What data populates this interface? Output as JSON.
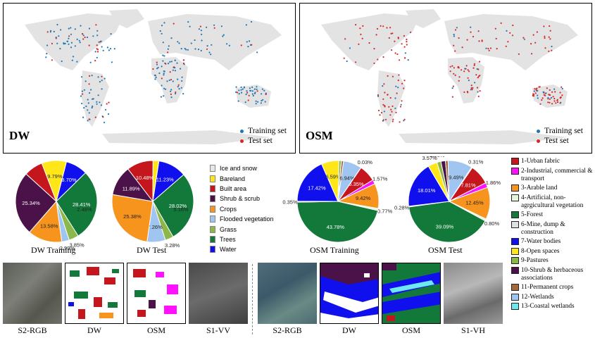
{
  "maps": [
    {
      "name": "DW",
      "legend": [
        {
          "label": "Training set",
          "color": "#1f77b4"
        },
        {
          "label": "Test set",
          "color": "#d62728"
        }
      ]
    },
    {
      "name": "OSM",
      "legend": [
        {
          "label": "Training set",
          "color": "#1f77b4"
        },
        {
          "label": "Test set",
          "color": "#d62728"
        }
      ]
    }
  ],
  "chart_data": [
    {
      "type": "pie",
      "title": "DW Training",
      "labels": [
        "Ice and snow",
        "Water",
        "Trees",
        "Grass",
        "Flooded vegetation",
        "Crops",
        "Shrub & scrub",
        "Built area",
        "Bareland"
      ],
      "values": [
        0,
        8.7,
        28.41,
        3.85,
        2.99,
        13.58,
        25.34,
        7.49,
        9.79
      ],
      "value_labels": [
        "",
        "8.70%",
        "28.41%",
        "3.85%",
        "2.99%",
        "13.58%",
        "25.34%",
        "",
        "9.79%"
      ],
      "extra_labels": [
        "2.48%"
      ]
    },
    {
      "type": "pie",
      "title": "DW Test",
      "labels": [
        "Ice and snow",
        "Water",
        "Trees",
        "Grass",
        "Flooded vegetation",
        "Crops",
        "Shrub & scrub",
        "Built area",
        "Bareland"
      ],
      "values": [
        0,
        11.23,
        28.02,
        3.28,
        7.26,
        25.38,
        11.89,
        10.48,
        2.29
      ],
      "value_labels": [
        "",
        "11.23%",
        "28.02%",
        "3.28%",
        "7.26%",
        "25.38%",
        "11.89%",
        "10.48%",
        "2.29%"
      ],
      "extra_labels": [
        "5.16%"
      ]
    },
    {
      "type": "pie",
      "title": "OSM Training",
      "labels": [
        "Urban fabric",
        "Industrial",
        "Arable land",
        "Artificial",
        "Forest",
        "Mine",
        "Water bodies",
        "Open spaces",
        "Pastures",
        "Shrub",
        "Permanent crops",
        "Wetlands",
        "Coastal wetlands"
      ],
      "values": [
        6.35,
        1.57,
        9.42,
        0.77,
        43.78,
        0.35,
        17.42,
        6.59,
        0.93,
        0.02,
        0.82,
        6.94,
        0.03
      ],
      "value_labels": [
        "6.35%",
        "1.57%",
        "9.42%",
        "0.77%",
        "43.78%",
        "0.35%",
        "17.42%",
        "6.59%",
        "0.93%",
        "0.02%",
        "0.82%",
        "6.94%",
        "0.03%"
      ]
    },
    {
      "type": "pie",
      "title": "OSM Test",
      "labels": [
        "Urban fabric",
        "Industrial",
        "Arable land",
        "Artificial",
        "Forest",
        "Mine",
        "Water bodies",
        "Open spaces",
        "Pastures",
        "Shrub",
        "Permanent crops",
        "Wetlands",
        "Coastal wetlands"
      ],
      "values": [
        7.81,
        1.86,
        12.45,
        0.8,
        39.09,
        0.28,
        18.01,
        3.57,
        1.56,
        1.74,
        1.04,
        9.49,
        0.31
      ],
      "value_labels": [
        "7.81%",
        "1.86%",
        "12.45%",
        "0.80%",
        "39.09%",
        "0.28%",
        "18.01%",
        "3.57%",
        "1.56%",
        "1.74%",
        "1.04%",
        "9.49%",
        "0.31%"
      ]
    }
  ],
  "dw_legend": [
    {
      "label": "Ice and snow",
      "color": "#e6e6e6"
    },
    {
      "label": "Bareland",
      "color": "#ffe619"
    },
    {
      "label": "Built area",
      "color": "#c4161c"
    },
    {
      "label": "Shrub & scrub",
      "color": "#4b1149"
    },
    {
      "label": "Crops",
      "color": "#f7941d"
    },
    {
      "label": "Flooded vegetation",
      "color": "#9fc5f0"
    },
    {
      "label": "Grass",
      "color": "#8cb84a"
    },
    {
      "label": "Trees",
      "color": "#13793a"
    },
    {
      "label": "Water",
      "color": "#1010ee"
    }
  ],
  "osm_legend": [
    {
      "label": "1-Urban fabric",
      "color": "#c4161c"
    },
    {
      "label": "2-Industrial, commercial & transport",
      "color": "#ff11ff"
    },
    {
      "label": "3-Arable land",
      "color": "#f7941d"
    },
    {
      "label": "4-Artificial, non-agrgicultural vegetation",
      "color": "#e3f7d8"
    },
    {
      "label": "5-Forest",
      "color": "#13793a"
    },
    {
      "label": "6-Mine, dump & construction",
      "color": "#e0e0e0"
    },
    {
      "label": "7-Water bodies",
      "color": "#1010ee"
    },
    {
      "label": "8-Open spaces",
      "color": "#ffe619"
    },
    {
      "label": "9-Pastures",
      "color": "#8cb84a"
    },
    {
      "label": "10-Shrub & herbaceous associations",
      "color": "#4b1149"
    },
    {
      "label": "11-Permanent crops",
      "color": "#a56a3b"
    },
    {
      "label": "12-Wetlands",
      "color": "#9fc5f0"
    },
    {
      "label": "13-Coastal wetlands",
      "color": "#6ee8f0"
    }
  ],
  "thumbs": [
    "S2-RGB",
    "DW",
    "OSM",
    "S1-VV",
    "S2-RGB",
    "DW",
    "OSM",
    "S1-VH"
  ]
}
